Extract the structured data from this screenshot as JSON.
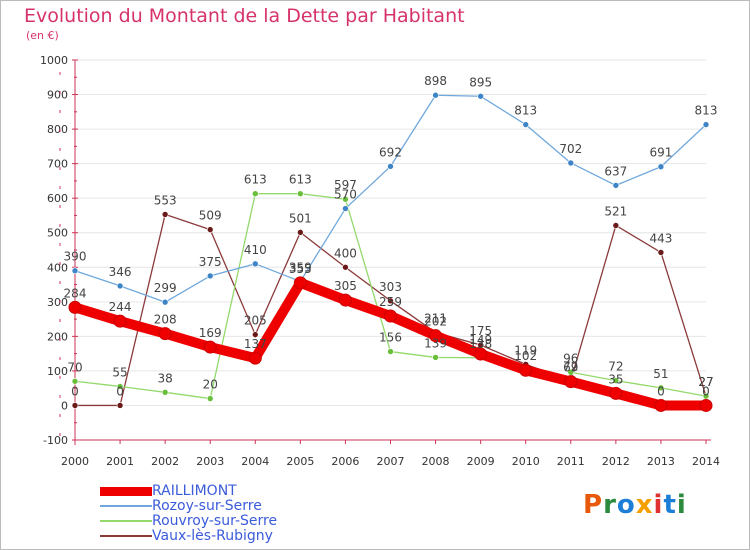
{
  "title": "Evolution du Montant de la Dette par Habitant",
  "unit": "(en €)",
  "logo": {
    "text": "Proxiti",
    "colors": [
      "#e8590c",
      "#2b8a3e",
      "#1c7ed6",
      "#f59f00",
      "#e03131",
      "#1c7ed6",
      "#2b8a3e"
    ]
  },
  "colors": {
    "title": "#d6336c",
    "axis": "#cc3355",
    "tick_label": "#333333",
    "value_label": "#444444",
    "grid": "#e6e6e6"
  },
  "chart_data": {
    "type": "line",
    "title": "Evolution du Montant de la Dette par Habitant",
    "ylabel": "(en €)",
    "xlabel": "",
    "x": [
      "2000",
      "2001",
      "2002",
      "2003",
      "2004",
      "2005",
      "2006",
      "2007",
      "2008",
      "2009",
      "2010",
      "2011",
      "2012",
      "2013",
      "2014"
    ],
    "ylim": [
      -100,
      1000
    ],
    "yticks": [
      -100,
      0,
      100,
      200,
      300,
      400,
      500,
      600,
      700,
      800,
      900,
      1000
    ],
    "grid": true,
    "legend_position": "bottom-left",
    "series": [
      {
        "name": "RAILLIMONT",
        "color": "#ee0000",
        "marker": "#ee0000",
        "emphasis": true,
        "values": [
          284,
          244,
          208,
          169,
          137,
          355,
          305,
          259,
          202,
          149,
          102,
          69,
          35,
          0,
          0
        ]
      },
      {
        "name": "Rozoy-sur-Serre",
        "color": "#6fa8dc",
        "marker": "#3d85c6",
        "emphasis": false,
        "values": [
          390,
          346,
          299,
          375,
          410,
          359,
          570,
          692,
          898,
          895,
          813,
          702,
          637,
          691,
          813
        ]
      },
      {
        "name": "Rouvroy-sur-Serre",
        "color": "#93d96b",
        "marker": "#6abf3a",
        "emphasis": false,
        "values": [
          70,
          55,
          38,
          20,
          613,
          613,
          597,
          156,
          139,
          138,
          null,
          96,
          72,
          51,
          27
        ]
      },
      {
        "name": "Vaux-lès-Rubigny",
        "color": "#8b3a3a",
        "marker": "#6b1a1a",
        "emphasis": false,
        "values": [
          0,
          0,
          553,
          509,
          205,
          501,
          400,
          303,
          211,
          175,
          119,
          72,
          521,
          443,
          27
        ]
      }
    ]
  }
}
